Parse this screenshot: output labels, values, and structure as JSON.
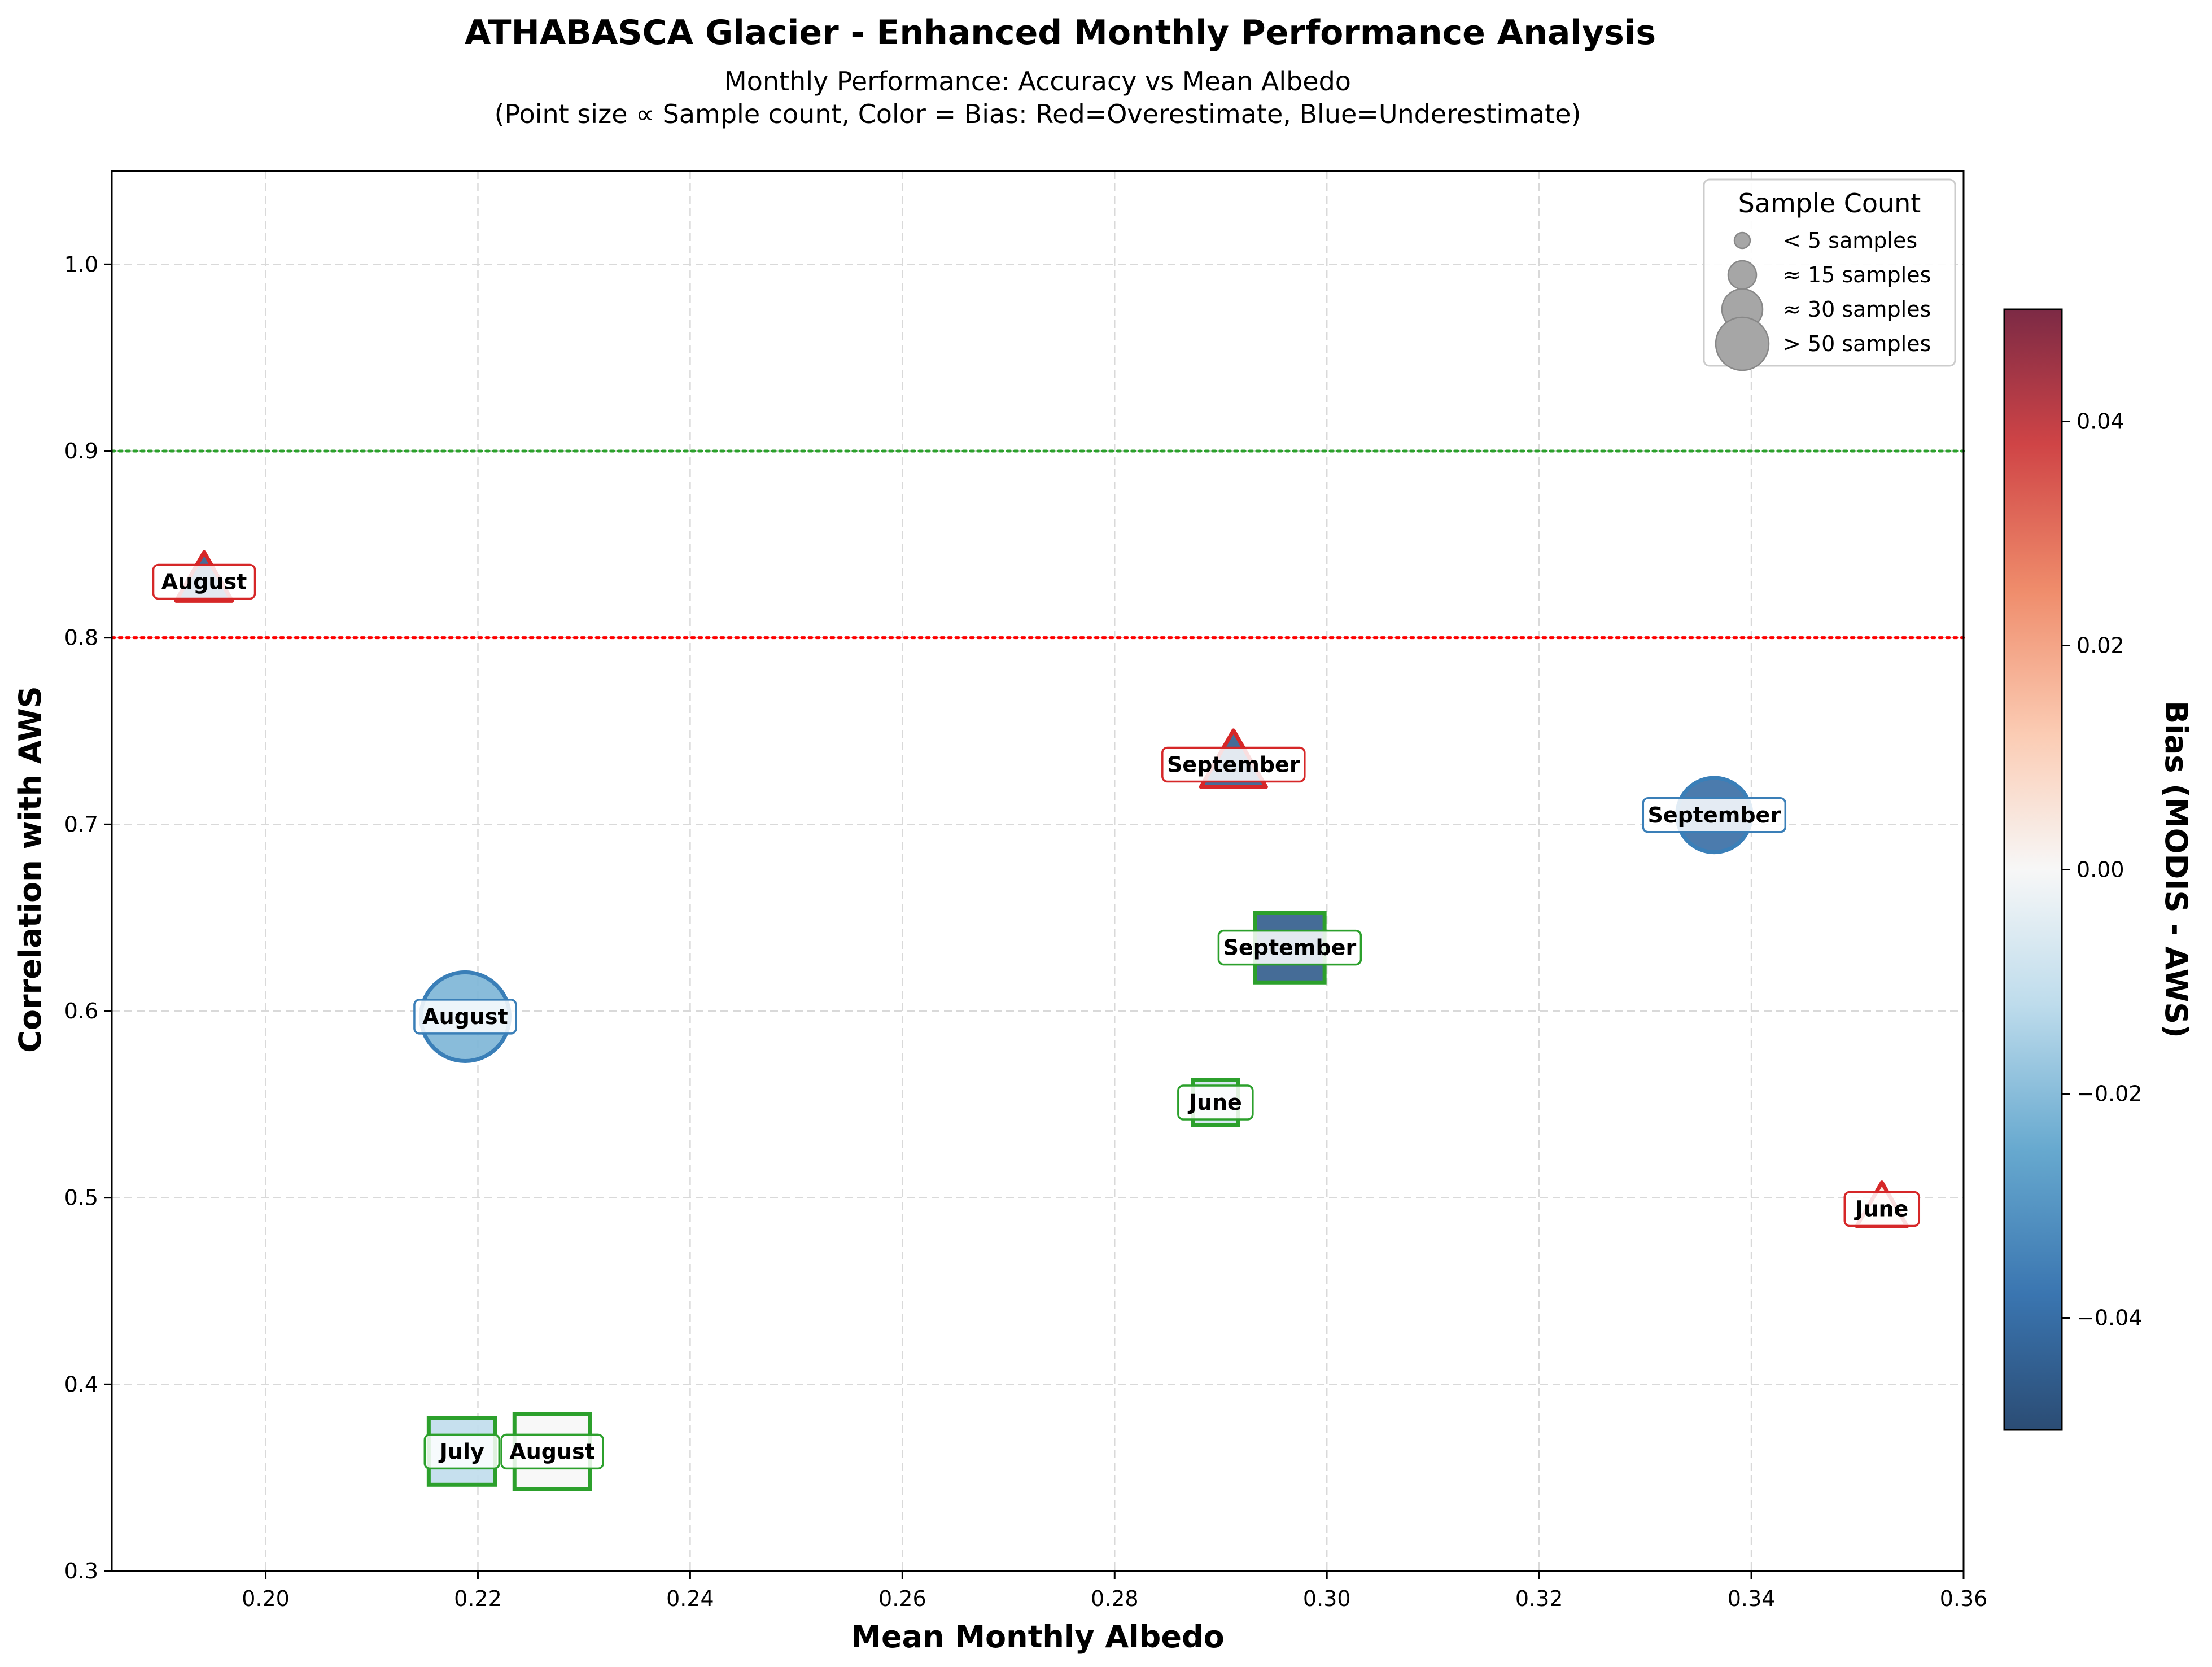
{
  "chart_data": {
    "type": "scatter",
    "title": "ATHABASCA Glacier - Enhanced Monthly Performance Analysis",
    "subtitle_lines": [
      "Monthly Performance: Accuracy vs Mean Albedo",
      "(Point size ∝ Sample count, Color = Bias: Red=Overestimate, Blue=Underestimate)"
    ],
    "xlabel": "Mean Monthly Albedo",
    "ylabel": "Correlation with AWS",
    "xlim": [
      0.1855,
      0.36
    ],
    "ylim": [
      0.3,
      1.05
    ],
    "x_ticks": [
      0.2,
      0.22,
      0.24,
      0.26,
      0.28,
      0.3,
      0.32,
      0.34,
      0.36
    ],
    "x_tick_labels": [
      "0.20",
      "0.22",
      "0.24",
      "0.26",
      "0.28",
      "0.30",
      "0.32",
      "0.34",
      "0.36"
    ],
    "y_ticks": [
      0.3,
      0.4,
      0.5,
      0.6,
      0.7,
      0.8,
      0.9,
      1.0
    ],
    "y_tick_labels": [
      "0.3",
      "0.4",
      "0.5",
      "0.6",
      "0.7",
      "0.8",
      "0.9",
      "1.0"
    ],
    "grid": true,
    "reference_lines": [
      {
        "y": 0.9,
        "color": "#2ca02c",
        "style": "dotted"
      },
      {
        "y": 0.8,
        "color": "#ff0000",
        "style": "dotted"
      }
    ],
    "colorbar": {
      "label": "Bias (MODIS - AWS)",
      "range": [
        -0.05,
        0.05
      ],
      "ticks": [
        0.04,
        0.02,
        0.0,
        -0.02,
        -0.04
      ],
      "tick_labels": [
        "0.04",
        "0.02",
        "0.00",
        "−0.02",
        "−0.04"
      ],
      "colormap": "RdBu_r"
    },
    "legend": {
      "title": "Sample Count",
      "placement": "top-right",
      "items": [
        {
          "label": "< 5 samples",
          "samples": 5
        },
        {
          "label": "≈ 15 samples",
          "samples": 15
        },
        {
          "label": "≈ 30 samples",
          "samples": 30
        },
        {
          "label": "> 50 samples",
          "samples": 50
        }
      ]
    },
    "points": [
      {
        "label": "August",
        "x": 0.1942,
        "y": 0.83,
        "marker": "triangle",
        "edge": "#d62728",
        "bias": -0.045,
        "samples": 12
      },
      {
        "label": "September",
        "x": 0.2912,
        "y": 0.732,
        "marker": "triangle",
        "edge": "#d62728",
        "bias": -0.045,
        "samples": 20
      },
      {
        "label": "June",
        "x": 0.3523,
        "y": 0.494,
        "marker": "triangle",
        "edge": "#d62728",
        "bias": 0.005,
        "samples": 8
      },
      {
        "label": "September",
        "x": 0.3365,
        "y": 0.705,
        "marker": "circle",
        "edge": "#3a7fb8",
        "bias": -0.04,
        "samples": 30
      },
      {
        "label": "August",
        "x": 0.2188,
        "y": 0.597,
        "marker": "circle",
        "edge": "#3a7fb8",
        "bias": -0.022,
        "samples": 50
      },
      {
        "label": "September",
        "x": 0.2965,
        "y": 0.634,
        "marker": "square",
        "edge": "#2ca02c",
        "bias": -0.045,
        "samples": 40
      },
      {
        "label": "June",
        "x": 0.2895,
        "y": 0.551,
        "marker": "square",
        "edge": "#2ca02c",
        "bias": -0.008,
        "samples": 10
      },
      {
        "label": "July",
        "x": 0.2185,
        "y": 0.364,
        "marker": "square",
        "edge": "#2ca02c",
        "bias": -0.012,
        "samples": 35
      },
      {
        "label": "August",
        "x": 0.227,
        "y": 0.364,
        "marker": "square",
        "edge": "#2ca02c",
        "bias": 0.0,
        "samples": 50
      }
    ]
  }
}
